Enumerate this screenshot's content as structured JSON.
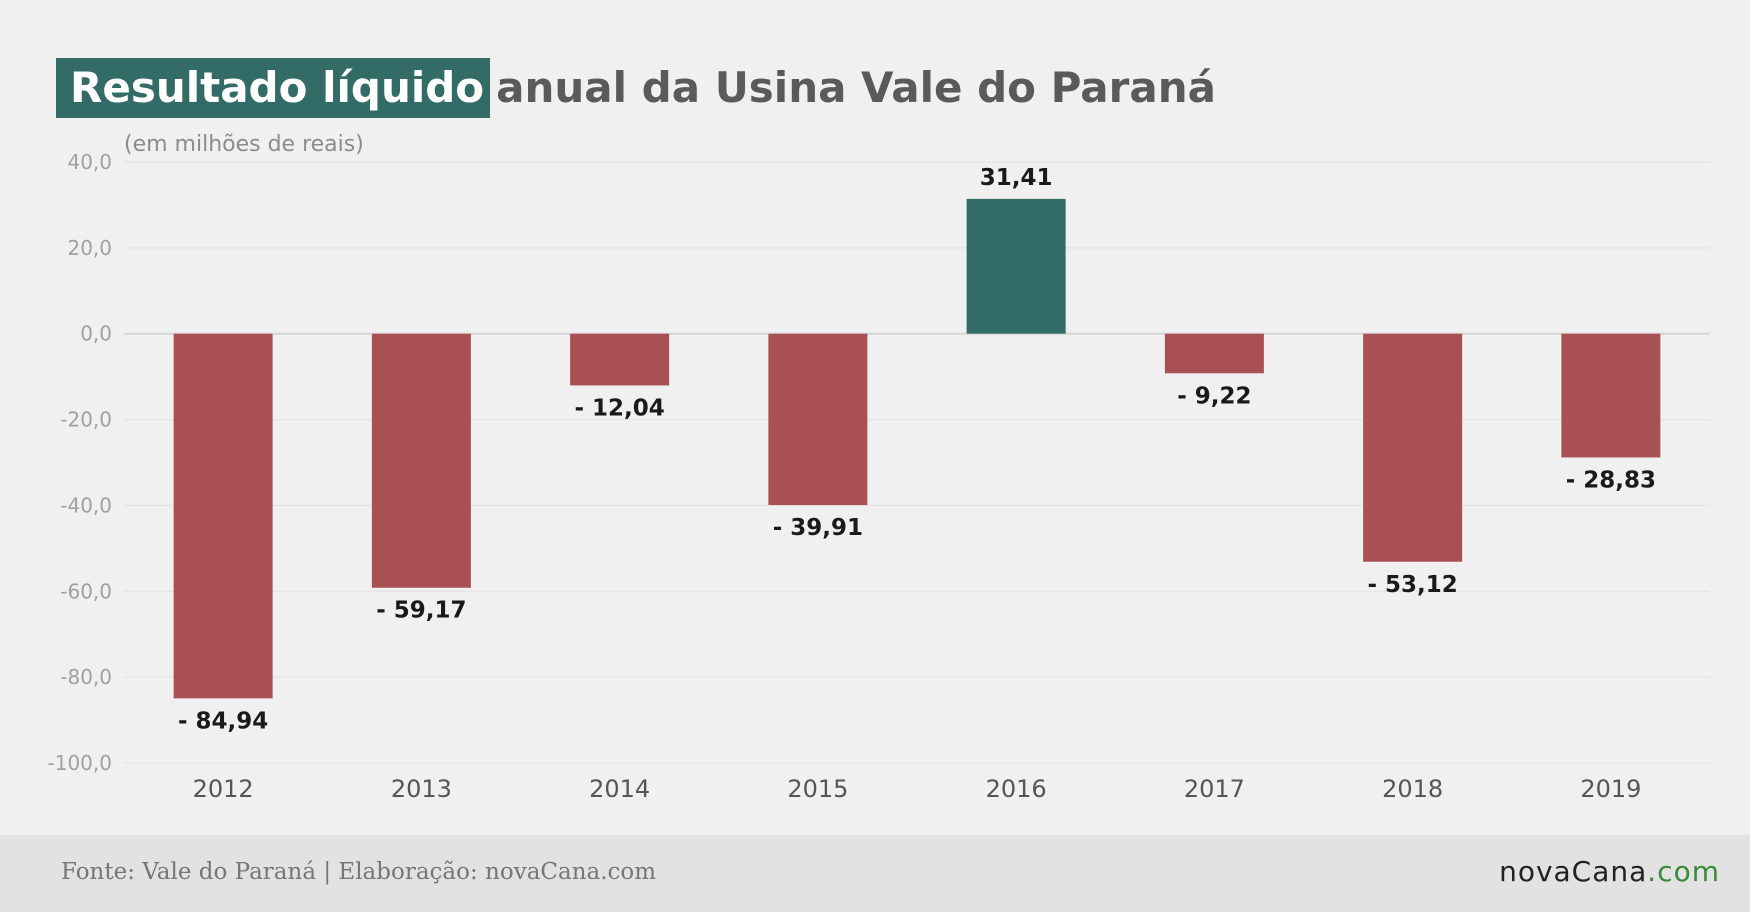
{
  "header": {
    "title_highlight": "Resultado líquido",
    "title_rest": "anual da Usina Vale do Paraná",
    "subtitle": "(em milhões de reais)"
  },
  "chart_data": {
    "type": "bar",
    "title": "Resultado líquido anual da Usina Vale do Paraná",
    "subtitle": "(em milhões de reais)",
    "xlabel": "",
    "ylabel": "",
    "categories": [
      "2012",
      "2013",
      "2014",
      "2015",
      "2016",
      "2017",
      "2018",
      "2019"
    ],
    "values": [
      -84.94,
      -59.17,
      -12.04,
      -39.91,
      31.41,
      -9.22,
      -53.12,
      -28.83
    ],
    "data_labels": [
      "- 84,94",
      "- 59,17",
      "- 12,04",
      "- 39,91",
      "31,41",
      "- 9,22",
      "- 53,12",
      "- 28,83"
    ],
    "ylim": [
      -100,
      40
    ],
    "yticks": [
      40,
      20,
      0,
      -20,
      -40,
      -60,
      -80,
      -100
    ],
    "ytick_labels": [
      "40,0",
      "20,0",
      "0,0",
      "-20,0",
      "-40,0",
      "-60,0",
      "-80,0",
      "-100,0"
    ],
    "grid": true,
    "legend": "none",
    "colors": {
      "positive": "#336b67",
      "negative": "#a85053",
      "tick_text": "#a0a0a0",
      "category_text": "#555555",
      "label_text": "#1a1a1a",
      "grid": "#e2e2e2",
      "zero_line": "#d6d6d6"
    }
  },
  "footer": {
    "source": "Fonte: Vale do Paraná | Elaboração: novaCana.com",
    "logo_main": "novaCana",
    "logo_tld": ".com"
  }
}
